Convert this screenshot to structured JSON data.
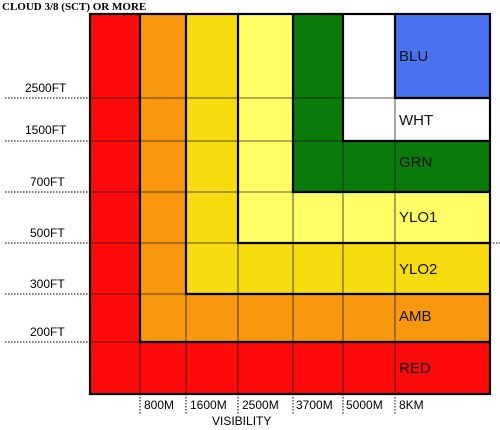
{
  "title": "CLOUD 3/8 (SCT) OR MORE",
  "cloud_levels": [
    "2500FT",
    "1500FT",
    "700FT",
    "500FT",
    "300FT",
    "200FT"
  ],
  "visibility_levels": [
    "800M",
    "1600M",
    "2500M",
    "3700M",
    "5000M",
    "8KM"
  ],
  "visibility_axis_label": "VISIBILITY",
  "colour_states": [
    {
      "code": "BLU",
      "color": "#4a72f0"
    },
    {
      "code": "WHT",
      "color": "#ffffff"
    },
    {
      "code": "GRN",
      "color": "#0a7a0a"
    },
    {
      "code": "YLO1",
      "color": "#ffff66"
    },
    {
      "code": "YLO2",
      "color": "#f7dc10"
    },
    {
      "code": "AMB",
      "color": "#f7980f"
    },
    {
      "code": "RED",
      "color": "#ff0a0a"
    }
  ]
}
